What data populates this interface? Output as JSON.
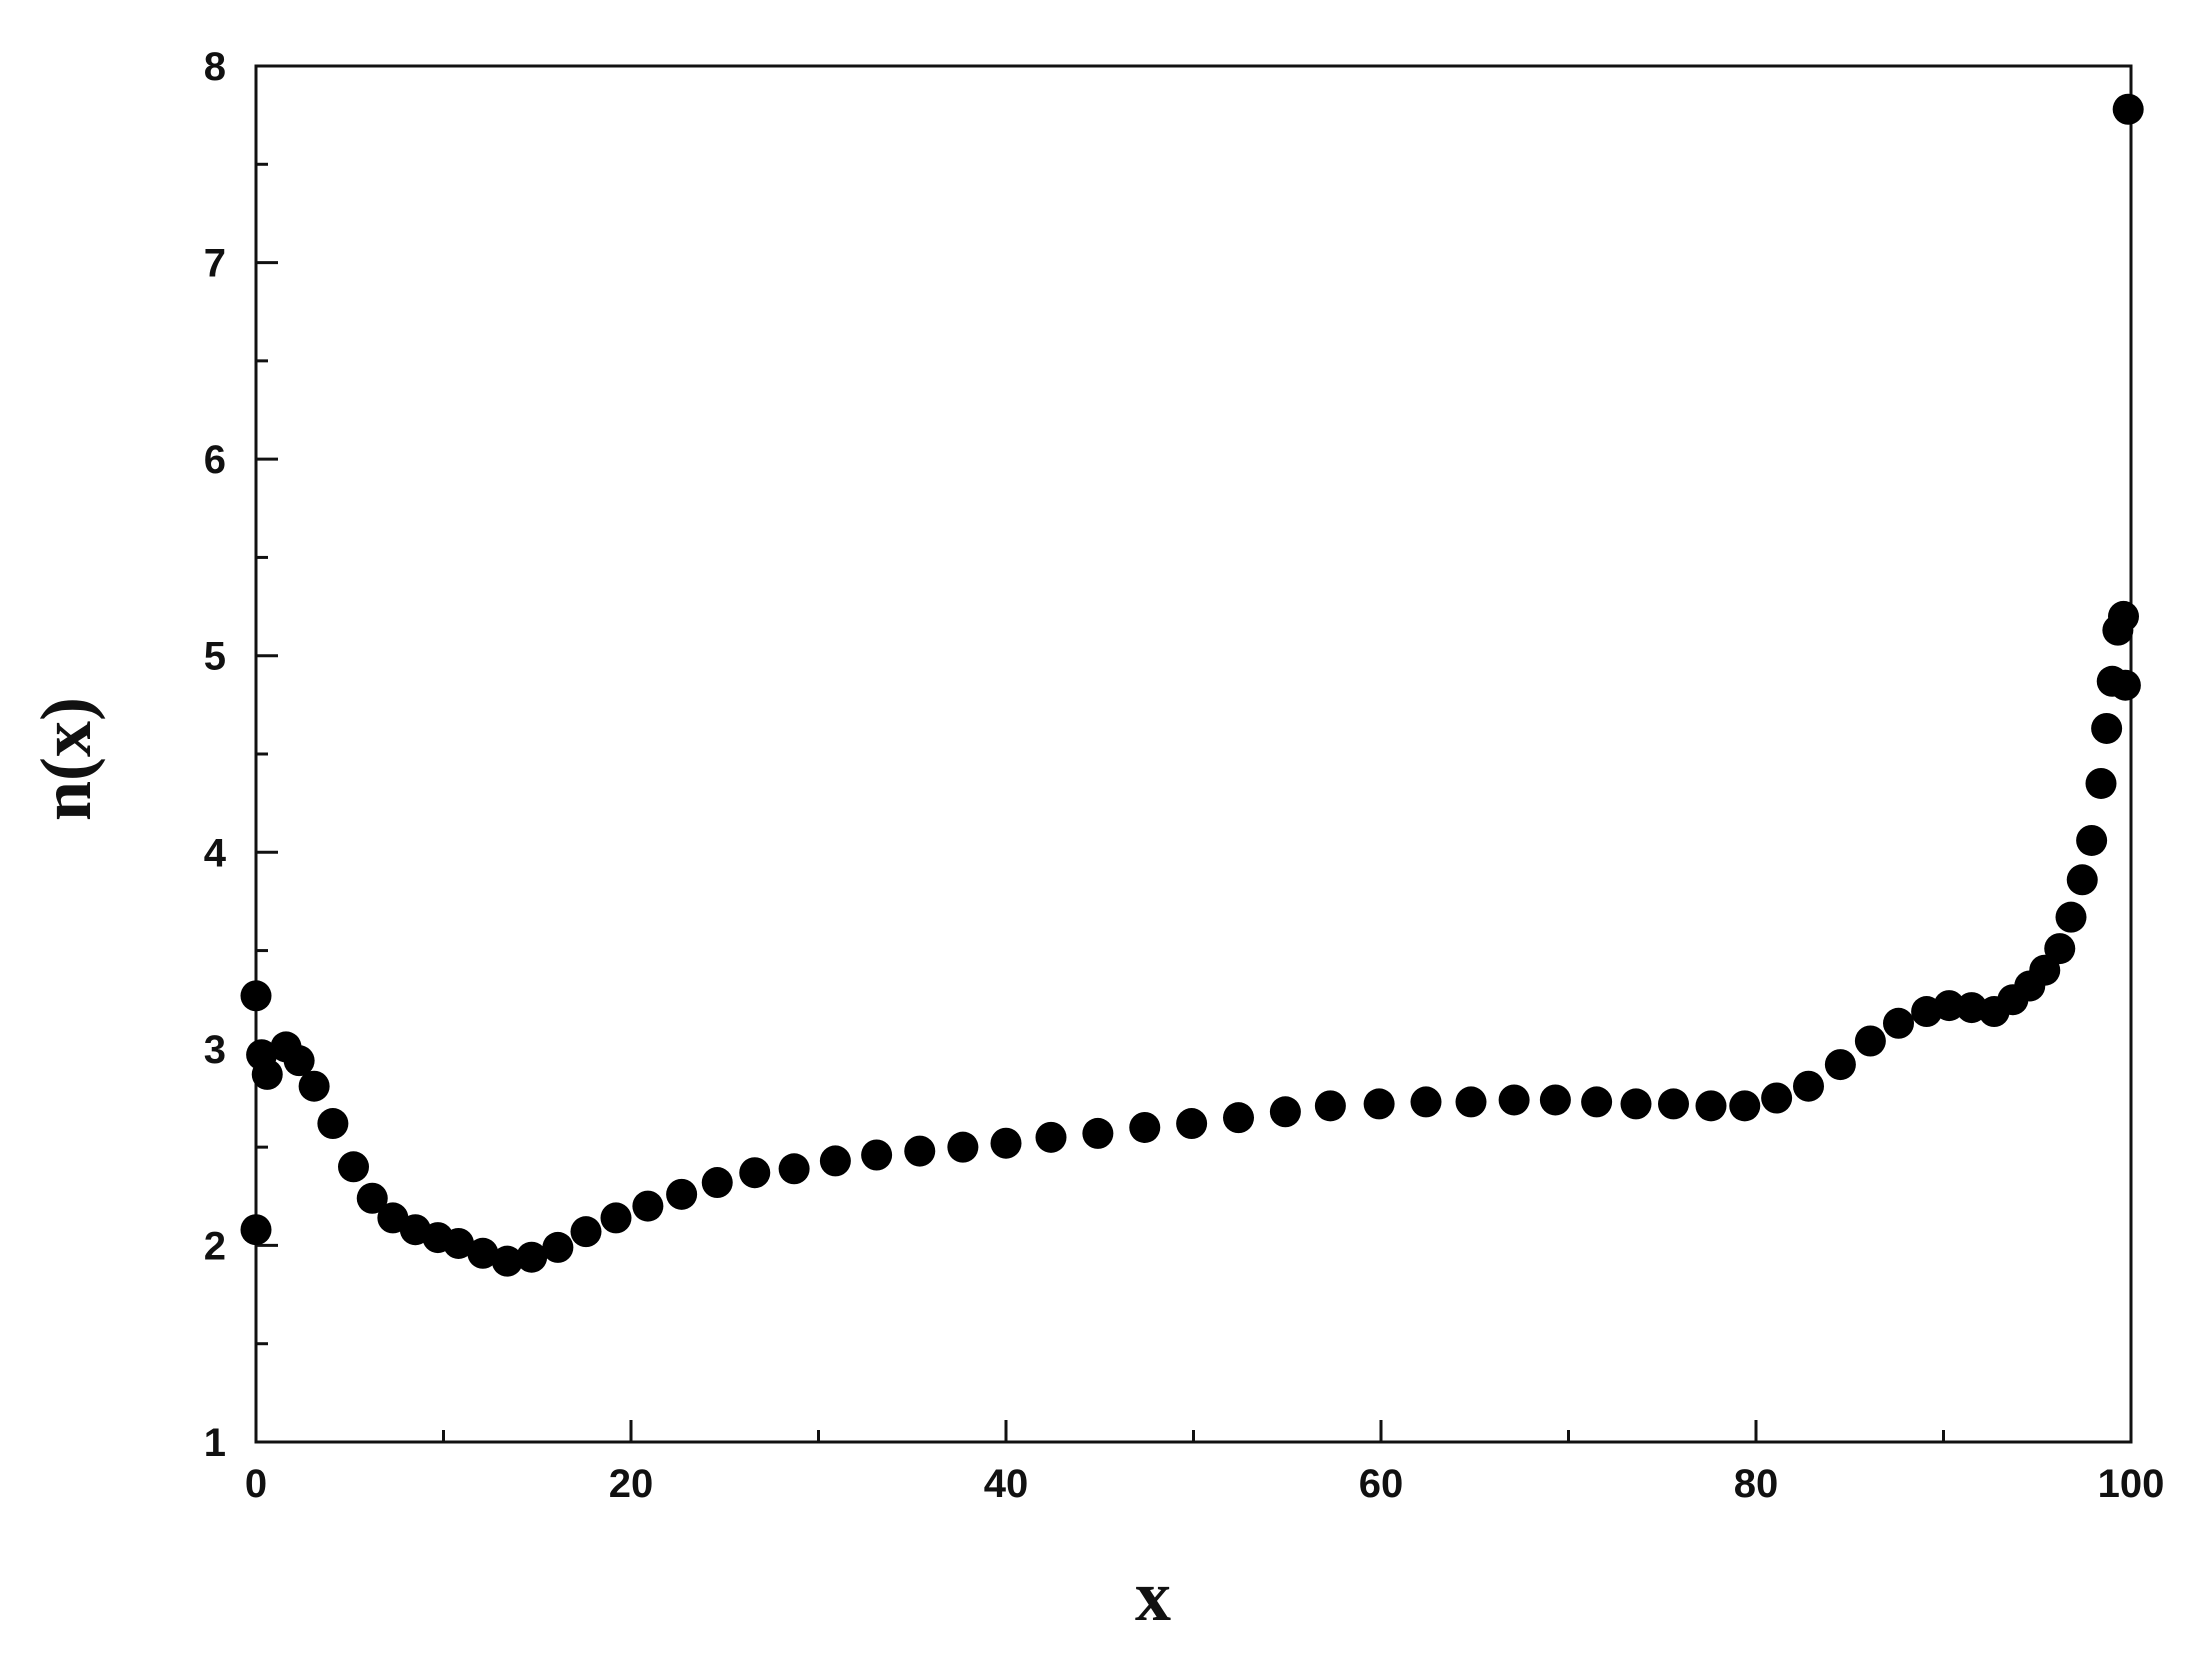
{
  "chart_data": {
    "type": "scatter",
    "xlabel": "x",
    "ylabel": "n(x)",
    "color": "#000000",
    "x": [
      0,
      0,
      0.3,
      0.6,
      1.6,
      2.3,
      3.1,
      4.1,
      5.2,
      6.2,
      7.3,
      8.5,
      9.7,
      10.8,
      12.1,
      13.4,
      14.7,
      16.1,
      17.6,
      19.2,
      20.9,
      22.7,
      24.6,
      26.6,
      28.7,
      30.9,
      33.1,
      35.4,
      37.7,
      40.0,
      42.4,
      44.9,
      47.4,
      49.9,
      52.4,
      54.9,
      57.3,
      59.9,
      62.4,
      64.8,
      67.1,
      69.3,
      71.5,
      73.6,
      75.6,
      77.6,
      79.4,
      81.1,
      82.8,
      84.5,
      86.1,
      87.6,
      89.1,
      90.3,
      91.5,
      92.7,
      93.7,
      94.6,
      95.4,
      96.2,
      96.8,
      97.4,
      97.9,
      98.4,
      98.7,
      99.0,
      99.3,
      99.6,
      99.7,
      99.85
    ],
    "values": [
      3.27,
      2.08,
      2.97,
      2.87,
      3.01,
      2.94,
      2.81,
      2.62,
      2.4,
      2.24,
      2.14,
      2.08,
      2.04,
      2.01,
      1.96,
      1.92,
      1.94,
      1.99,
      2.07,
      2.14,
      2.2,
      2.26,
      2.32,
      2.37,
      2.39,
      2.43,
      2.46,
      2.48,
      2.5,
      2.52,
      2.55,
      2.57,
      2.6,
      2.62,
      2.65,
      2.68,
      2.71,
      2.72,
      2.73,
      2.73,
      2.74,
      2.74,
      2.73,
      2.72,
      2.72,
      2.71,
      2.71,
      2.75,
      2.81,
      2.92,
      3.04,
      3.13,
      3.19,
      3.22,
      3.21,
      3.19,
      3.25,
      3.32,
      3.4,
      3.51,
      3.67,
      3.86,
      4.06,
      4.35,
      4.63,
      4.87,
      5.13,
      5.2,
      4.85,
      7.78
    ],
    "xlim": [
      0,
      100
    ],
    "xticks": [
      0,
      20,
      40,
      60,
      80,
      100
    ],
    "xminorticks": [
      10,
      30,
      50,
      70,
      90
    ],
    "ylim": [
      1,
      8
    ],
    "yticks": [
      1,
      2,
      3,
      4,
      5,
      6,
      7,
      8
    ],
    "yminorticks": [
      1.5,
      2.5,
      3.5,
      4.5,
      5.5,
      6.5,
      7.5
    ]
  }
}
